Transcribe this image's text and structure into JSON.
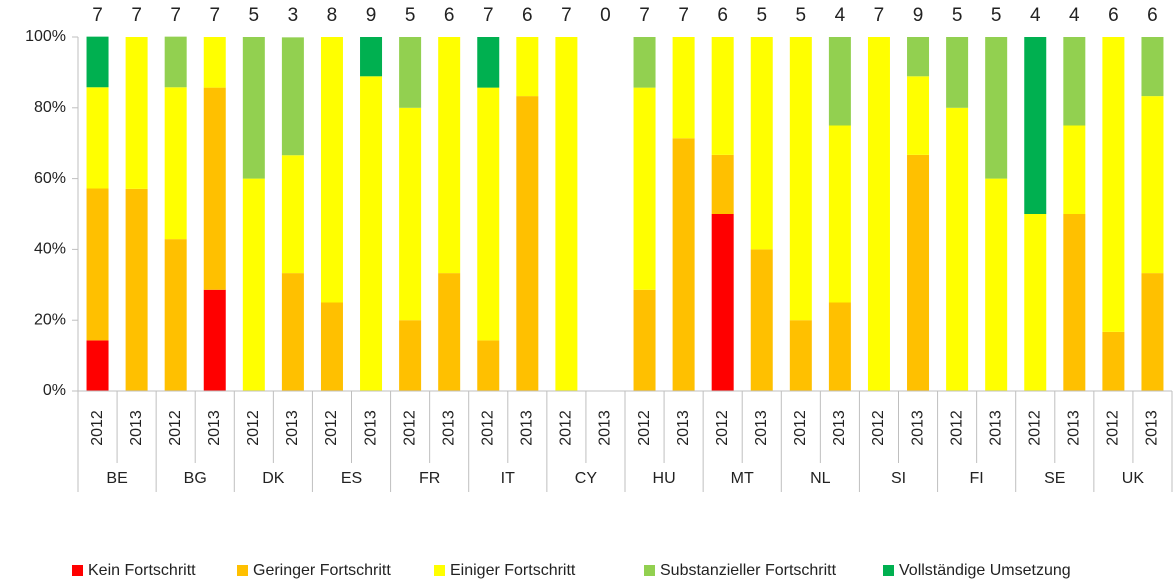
{
  "chart_data": {
    "type": "stacked_bar_100",
    "categories": [
      "2012",
      "2013",
      "2012",
      "2013",
      "2012",
      "2013",
      "2012",
      "2013",
      "2012",
      "2013",
      "2012",
      "2013",
      "2012",
      "2013",
      "2012",
      "2013",
      "2012",
      "2013",
      "2012",
      "2013",
      "2012",
      "2013",
      "2012",
      "2013",
      "2012",
      "2013",
      "2012",
      "2013"
    ],
    "groups": [
      "BE",
      "BG",
      "DK",
      "ES",
      "FR",
      "IT",
      "CY",
      "HU",
      "MT",
      "NL",
      "SI",
      "FI",
      "SE",
      "UK"
    ],
    "totals": [
      7,
      7,
      7,
      7,
      5,
      3,
      8,
      9,
      5,
      6,
      7,
      6,
      7,
      0,
      7,
      7,
      6,
      5,
      5,
      4,
      7,
      9,
      5,
      5,
      4,
      4,
      6,
      6
    ],
    "series": [
      {
        "name": "Kein Fortschritt",
        "color": "#ff0000",
        "values": [
          14.3,
          0,
          0,
          28.6,
          0,
          0,
          0,
          0,
          0,
          0,
          0,
          0,
          0,
          0,
          0,
          0,
          50,
          0,
          0,
          0,
          0,
          0,
          0,
          0,
          0,
          0,
          0,
          0
        ]
      },
      {
        "name": "Geringer Fortschritt",
        "color": "#ffc000",
        "values": [
          42.9,
          57.1,
          42.9,
          57.1,
          0,
          33.3,
          25,
          0,
          20,
          33.3,
          14.3,
          83.3,
          0,
          0,
          28.6,
          71.4,
          16.7,
          40,
          20,
          25,
          0,
          66.7,
          0,
          0,
          0,
          50,
          16.7,
          33.3
        ]
      },
      {
        "name": "Einiger Fortschritt",
        "color": "#ffff00",
        "values": [
          28.6,
          42.9,
          42.9,
          14.3,
          60,
          33.3,
          75,
          88.9,
          60,
          66.7,
          71.4,
          16.7,
          100,
          0,
          57.1,
          28.6,
          33.3,
          60,
          80,
          50,
          100,
          22.2,
          80,
          60,
          50,
          25,
          83.3,
          50
        ]
      },
      {
        "name": "Substanzieller Fortschritt",
        "color": "#92d050",
        "values": [
          0,
          0,
          14.3,
          0,
          40,
          33.3,
          0,
          0,
          20,
          0,
          0,
          0,
          0,
          0,
          14.3,
          0,
          0,
          0,
          0,
          25,
          0,
          11.1,
          20,
          40,
          0,
          25,
          0,
          16.7
        ]
      },
      {
        "name": "Vollständige Umsetzung",
        "color": "#00b050",
        "values": [
          14.3,
          0,
          0,
          0,
          0,
          0,
          0,
          11.1,
          0,
          0,
          14.3,
          0,
          0,
          0,
          0,
          0,
          0,
          0,
          0,
          0,
          0,
          0,
          0,
          0,
          50,
          0,
          0,
          0
        ]
      }
    ],
    "ylim": [
      0,
      100
    ],
    "yticks": [
      {
        "value": 0,
        "label": "0%"
      },
      {
        "value": 20,
        "label": "20%"
      },
      {
        "value": 40,
        "label": "40%"
      },
      {
        "value": 60,
        "label": "60%"
      },
      {
        "value": 80,
        "label": "80%"
      },
      {
        "value": 100,
        "label": "100%"
      }
    ],
    "grid": false
  }
}
